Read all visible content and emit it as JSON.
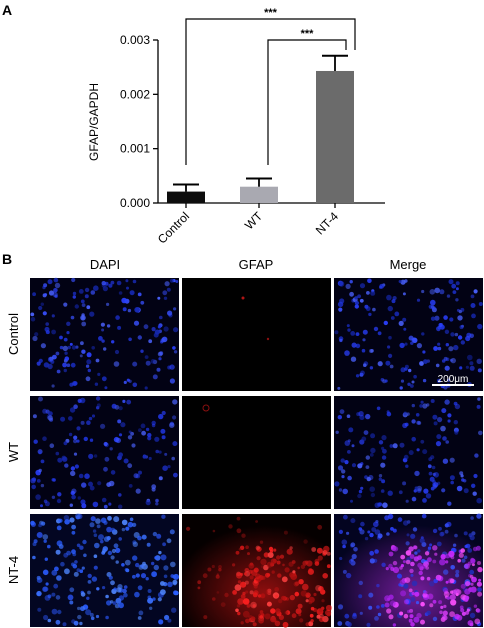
{
  "panels": {
    "a_label": "A",
    "b_label": "B"
  },
  "chart_data": {
    "type": "bar",
    "title": "",
    "xlabel": "",
    "ylabel": "GFAP/GAPDH",
    "categories": [
      "Control",
      "WT",
      "NT-4"
    ],
    "values": [
      0.00021,
      0.0003,
      0.00243
    ],
    "errors": [
      0.00013,
      0.00015,
      0.00028
    ],
    "bar_colors": [
      "#0d0d0d",
      "#a9a9b1",
      "#6b6b6b"
    ],
    "ylim": [
      0,
      0.003
    ],
    "yticks": [
      0,
      0.001,
      0.002,
      0.003
    ],
    "ytick_labels": [
      "0.000",
      "0.001",
      "0.002",
      "0.003"
    ],
    "grid": false,
    "significance": [
      {
        "from": "Control",
        "to": "NT-4",
        "label": "***"
      },
      {
        "from": "WT",
        "to": "NT-4",
        "label": "***"
      }
    ]
  },
  "micrographs": {
    "columns": [
      "DAPI",
      "GFAP",
      "Merge"
    ],
    "rows": [
      "Control",
      "WT",
      "NT-4"
    ],
    "scale_bar": "200μm",
    "channel_colors": {
      "dapi": "#2a3dff",
      "gfap": "#ff2020",
      "merge": "#c02aff",
      "background": "#000000"
    }
  }
}
